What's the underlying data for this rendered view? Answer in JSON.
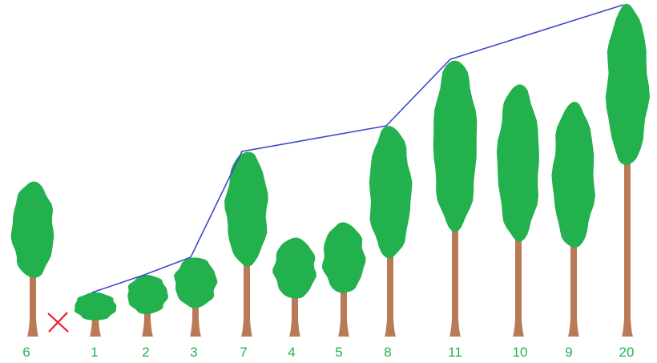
{
  "colors": {
    "foliage": "#22b14c",
    "trunk": "#b97a57",
    "label": "#22b14c",
    "connector": "#3f48cc",
    "cross": "#ed1c24"
  },
  "trees": [
    {
      "label": "6"
    },
    {
      "label": "1"
    },
    {
      "label": "2"
    },
    {
      "label": "3"
    },
    {
      "label": "7"
    },
    {
      "label": "4"
    },
    {
      "label": "5"
    },
    {
      "label": "8"
    },
    {
      "label": "11"
    },
    {
      "label": "10"
    },
    {
      "label": "9"
    },
    {
      "label": "20"
    }
  ],
  "marker": {
    "icon": "cross-icon"
  }
}
